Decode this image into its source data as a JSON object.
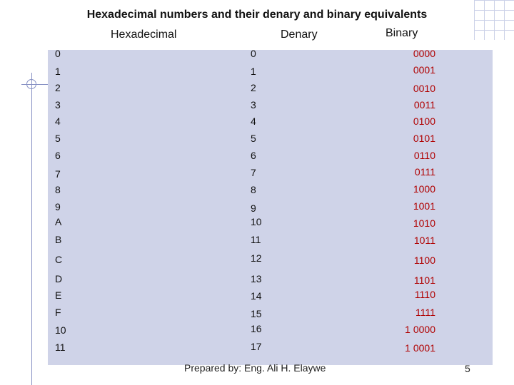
{
  "title": "Hexadecimal numbers and their denary and binary equivalents",
  "headers": {
    "hex": "Hexadecimal",
    "denary": "Denary",
    "binary": "Binary"
  },
  "rows": [
    {
      "hex": "0",
      "denary": "0",
      "binary": "0000"
    },
    {
      "hex": "1",
      "denary": "1",
      "binary": "0001"
    },
    {
      "hex": "2",
      "denary": "2",
      "binary": "0010"
    },
    {
      "hex": "3",
      "denary": "3",
      "binary": "0011"
    },
    {
      "hex": "4",
      "denary": "4",
      "binary": "0100"
    },
    {
      "hex": "5",
      "denary": "5",
      "binary": "0101"
    },
    {
      "hex": "6",
      "denary": "6",
      "binary": "0110"
    },
    {
      "hex": "7",
      "denary": "7",
      "binary": "0111"
    },
    {
      "hex": "8",
      "denary": "8",
      "binary": "1000"
    },
    {
      "hex": "9",
      "denary": "9",
      "binary": "1001"
    },
    {
      "hex": "A",
      "denary": "10",
      "binary": "1010"
    },
    {
      "hex": "B",
      "denary": "11",
      "binary": "1011"
    },
    {
      "hex": "C",
      "denary": "12",
      "binary": "1100"
    },
    {
      "hex": "D",
      "denary": "13",
      "binary": "1101"
    },
    {
      "hex": "E",
      "denary": "14",
      "binary": "1110"
    },
    {
      "hex": "F",
      "denary": "15",
      "binary": "1111"
    },
    {
      "hex": "10",
      "denary": "16",
      "binary": "1 0000"
    },
    {
      "hex": "11",
      "denary": "17",
      "binary": "1 0001"
    }
  ],
  "footer": "Prepared by: Eng.  Ali H. Elaywe",
  "page_number": "5",
  "colors": {
    "panel": "#cfd3e8",
    "binary_text": "#b00000",
    "accent_lines": "#8791c4"
  }
}
